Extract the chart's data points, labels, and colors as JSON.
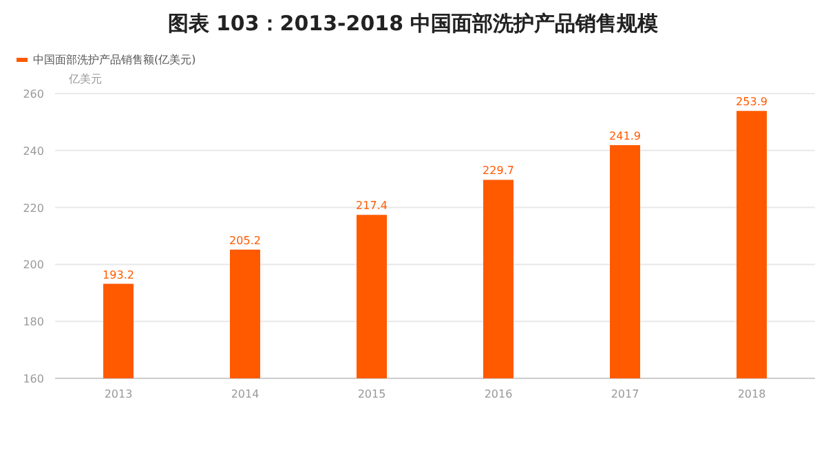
{
  "chart_data": {
    "type": "bar",
    "title": "图表 103：2013-2018 中国面部洗护产品销售规模",
    "ylabel": "亿美元",
    "categories": [
      "2013",
      "2014",
      "2015",
      "2016",
      "2017",
      "2018"
    ],
    "series": [
      {
        "name": "中国面部洗护产品销售额(亿美元)",
        "color": "#ff5a00",
        "values": [
          193.2,
          205.2,
          217.4,
          229.7,
          241.9,
          253.9
        ]
      }
    ],
    "ylim": [
      160,
      260
    ],
    "yticks": [
      160,
      180,
      200,
      220,
      240,
      260
    ],
    "grid": "y",
    "legend": "top left",
    "data_labels": true
  }
}
